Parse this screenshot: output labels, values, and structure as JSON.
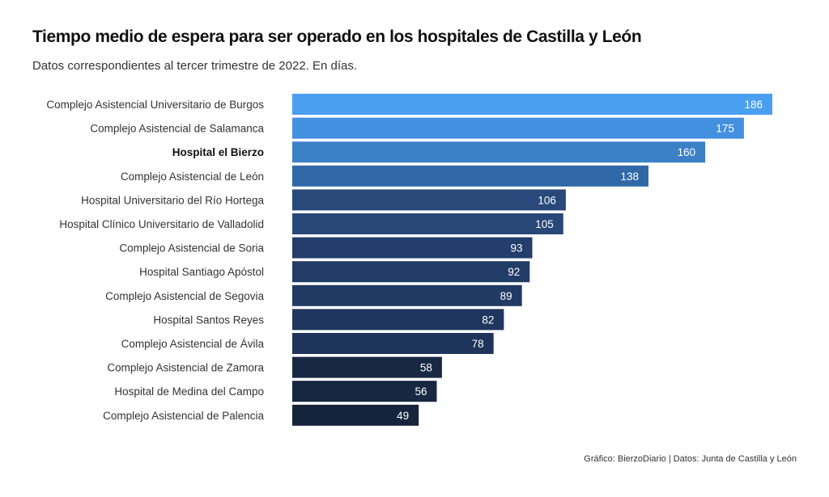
{
  "header": {
    "title": "Tiempo medio de espera para ser operado en los hospitales de Castilla y León",
    "subtitle": "Datos correspondientes al tercer trimestre de 2022. En días."
  },
  "footer": {
    "source": "Gráfico: BierzoDiario | Datos: Junta de Castilla y León"
  },
  "chart_data": {
    "type": "bar",
    "orientation": "horizontal",
    "title": "Tiempo medio de espera para ser operado en los hospitales de Castilla y León",
    "subtitle": "Datos correspondientes al tercer trimestre de 2022. En días.",
    "xlabel": "",
    "ylabel": "",
    "grid": false,
    "legend": "none",
    "highlight": "Hospital el Bierzo",
    "xlim": [
      0,
      186
    ],
    "categories": [
      "Complejo Asistencial Universitario de Burgos",
      "Complejo Asistencial de Salamanca",
      "Hospital el Bierzo",
      "Complejo Asistencial de León",
      "Hospital Universitario del Río Hortega",
      "Hospital Clínico Universitario de Valladolid",
      "Complejo Asistencial de Soria",
      "Hospital Santiago Apóstol",
      "Complejo Asistencial de Segovia",
      "Hospital Santos Reyes",
      "Complejo Asistencial de Ávila",
      "Complejo Asistencial de Zamora",
      "Hospital de Medina del Campo",
      "Complejo Asistencial de Palencia"
    ],
    "values": [
      186,
      175,
      160,
      138,
      106,
      105,
      93,
      92,
      89,
      82,
      78,
      58,
      56,
      49
    ],
    "colors": [
      "#4a9ff0",
      "#4490e0",
      "#3c81c8",
      "#3068a8",
      "#28497a",
      "#284878",
      "#233e6a",
      "#223c68",
      "#213a64",
      "#1f365e",
      "#1e345a",
      "#182844",
      "#172742",
      "#15233b"
    ],
    "label_color": "#ffffff"
  }
}
